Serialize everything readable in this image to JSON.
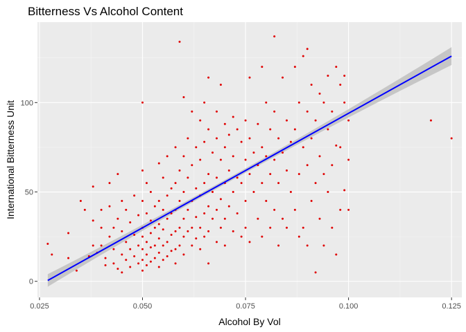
{
  "chart_data": {
    "type": "scatter",
    "title": "Bitterness Vs Alcohol Content",
    "xlabel": "Alcohol By Vol",
    "ylabel": "International Bitterness Unit",
    "xlim": [
      0.0245,
      0.1275
    ],
    "ylim": [
      -9,
      145
    ],
    "x_ticks": [
      0.025,
      0.05,
      0.075,
      0.1,
      0.125
    ],
    "x_tick_labels": [
      "0.025",
      "0.050",
      "0.075",
      "0.100",
      "0.125"
    ],
    "y_ticks": [
      0,
      50,
      100
    ],
    "y_tick_labels": [
      "0",
      "50",
      "100"
    ],
    "grid": true,
    "legend": "none",
    "point_color": "#e00000",
    "fit_color": "#0000ff",
    "ribbon_color": "#bdbdbd",
    "panel_color": "#ebebeb",
    "fit_line": {
      "x": [
        0.027,
        0.125
      ],
      "y": [
        0.5,
        126
      ],
      "ci_halfwidth_start": 3.5,
      "ci_halfwidth_mid": 1.2,
      "ci_halfwidth_end": 5
    },
    "points": [
      [
        0.027,
        21
      ],
      [
        0.028,
        15
      ],
      [
        0.032,
        27
      ],
      [
        0.032,
        13
      ],
      [
        0.034,
        6
      ],
      [
        0.035,
        45
      ],
      [
        0.036,
        40
      ],
      [
        0.037,
        14
      ],
      [
        0.038,
        53
      ],
      [
        0.038,
        34
      ],
      [
        0.038,
        20
      ],
      [
        0.039,
        16
      ],
      [
        0.04,
        40
      ],
      [
        0.04,
        30
      ],
      [
        0.04,
        20
      ],
      [
        0.041,
        9
      ],
      [
        0.041,
        13
      ],
      [
        0.042,
        55
      ],
      [
        0.042,
        42
      ],
      [
        0.042,
        25
      ],
      [
        0.043,
        30
      ],
      [
        0.043,
        18
      ],
      [
        0.043,
        10
      ],
      [
        0.044,
        7
      ],
      [
        0.044,
        60
      ],
      [
        0.044,
        35
      ],
      [
        0.045,
        45
      ],
      [
        0.045,
        28
      ],
      [
        0.045,
        15
      ],
      [
        0.045,
        5
      ],
      [
        0.046,
        40
      ],
      [
        0.046,
        22
      ],
      [
        0.046,
        12
      ],
      [
        0.047,
        33
      ],
      [
        0.047,
        18
      ],
      [
        0.047,
        8
      ],
      [
        0.048,
        48
      ],
      [
        0.048,
        26
      ],
      [
        0.048,
        14
      ],
      [
        0.049,
        37
      ],
      [
        0.049,
        20
      ],
      [
        0.049,
        10
      ],
      [
        0.05,
        100
      ],
      [
        0.05,
        62
      ],
      [
        0.05,
        45
      ],
      [
        0.05,
        30
      ],
      [
        0.05,
        25
      ],
      [
        0.05,
        18
      ],
      [
        0.05,
        12
      ],
      [
        0.05,
        6
      ],
      [
        0.051,
        55
      ],
      [
        0.051,
        38
      ],
      [
        0.051,
        22
      ],
      [
        0.051,
        15
      ],
      [
        0.051,
        9
      ],
      [
        0.052,
        50
      ],
      [
        0.052,
        34
      ],
      [
        0.052,
        27
      ],
      [
        0.052,
        19
      ],
      [
        0.052,
        11
      ],
      [
        0.053,
        42
      ],
      [
        0.053,
        30
      ],
      [
        0.053,
        20
      ],
      [
        0.053,
        13
      ],
      [
        0.054,
        66
      ],
      [
        0.054,
        45
      ],
      [
        0.054,
        32
      ],
      [
        0.054,
        24
      ],
      [
        0.054,
        16
      ],
      [
        0.054,
        8
      ],
      [
        0.055,
        58
      ],
      [
        0.055,
        40
      ],
      [
        0.055,
        29
      ],
      [
        0.055,
        20
      ],
      [
        0.055,
        12
      ],
      [
        0.056,
        70
      ],
      [
        0.056,
        48
      ],
      [
        0.056,
        35
      ],
      [
        0.056,
        22
      ],
      [
        0.056,
        14
      ],
      [
        0.057,
        52
      ],
      [
        0.057,
        38
      ],
      [
        0.057,
        26
      ],
      [
        0.057,
        17
      ],
      [
        0.058,
        75
      ],
      [
        0.058,
        55
      ],
      [
        0.058,
        40
      ],
      [
        0.058,
        28
      ],
      [
        0.058,
        18
      ],
      [
        0.058,
        10
      ],
      [
        0.059,
        134
      ],
      [
        0.059,
        62
      ],
      [
        0.059,
        45
      ],
      [
        0.059,
        30
      ],
      [
        0.059,
        20
      ],
      [
        0.06,
        103
      ],
      [
        0.06,
        70
      ],
      [
        0.06,
        50
      ],
      [
        0.06,
        35
      ],
      [
        0.06,
        25
      ],
      [
        0.06,
        15
      ],
      [
        0.061,
        80
      ],
      [
        0.061,
        58
      ],
      [
        0.061,
        40
      ],
      [
        0.061,
        28
      ],
      [
        0.062,
        95
      ],
      [
        0.062,
        65
      ],
      [
        0.062,
        45
      ],
      [
        0.062,
        30
      ],
      [
        0.062,
        20
      ],
      [
        0.063,
        75
      ],
      [
        0.063,
        52
      ],
      [
        0.063,
        36
      ],
      [
        0.063,
        24
      ],
      [
        0.064,
        90
      ],
      [
        0.064,
        68
      ],
      [
        0.064,
        48
      ],
      [
        0.064,
        30
      ],
      [
        0.064,
        18
      ],
      [
        0.065,
        100
      ],
      [
        0.065,
        78
      ],
      [
        0.065,
        55
      ],
      [
        0.065,
        38
      ],
      [
        0.065,
        25
      ],
      [
        0.066,
        114
      ],
      [
        0.066,
        85
      ],
      [
        0.066,
        60
      ],
      [
        0.066,
        42
      ],
      [
        0.066,
        28
      ],
      [
        0.066,
        10
      ],
      [
        0.067,
        72
      ],
      [
        0.067,
        50
      ],
      [
        0.067,
        35
      ],
      [
        0.068,
        95
      ],
      [
        0.068,
        80
      ],
      [
        0.068,
        58
      ],
      [
        0.068,
        40
      ],
      [
        0.068,
        22
      ],
      [
        0.069,
        110
      ],
      [
        0.069,
        68
      ],
      [
        0.069,
        46
      ],
      [
        0.069,
        30
      ],
      [
        0.07,
        88
      ],
      [
        0.07,
        75
      ],
      [
        0.07,
        55
      ],
      [
        0.07,
        35
      ],
      [
        0.07,
        20
      ],
      [
        0.071,
        82
      ],
      [
        0.071,
        62
      ],
      [
        0.071,
        42
      ],
      [
        0.072,
        92
      ],
      [
        0.072,
        70
      ],
      [
        0.072,
        50
      ],
      [
        0.072,
        28
      ],
      [
        0.073,
        85
      ],
      [
        0.073,
        58
      ],
      [
        0.073,
        38
      ],
      [
        0.074,
        78
      ],
      [
        0.074,
        55
      ],
      [
        0.074,
        25
      ],
      [
        0.075,
        90
      ],
      [
        0.075,
        68
      ],
      [
        0.075,
        45
      ],
      [
        0.075,
        30
      ],
      [
        0.076,
        114
      ],
      [
        0.076,
        80
      ],
      [
        0.076,
        60
      ],
      [
        0.076,
        22
      ],
      [
        0.077,
        72
      ],
      [
        0.077,
        50
      ],
      [
        0.078,
        88
      ],
      [
        0.078,
        65
      ],
      [
        0.078,
        35
      ],
      [
        0.079,
        120
      ],
      [
        0.079,
        75
      ],
      [
        0.079,
        55
      ],
      [
        0.079,
        25
      ],
      [
        0.08,
        100
      ],
      [
        0.08,
        70
      ],
      [
        0.08,
        45
      ],
      [
        0.081,
        85
      ],
      [
        0.081,
        60
      ],
      [
        0.081,
        30
      ],
      [
        0.082,
        137
      ],
      [
        0.082,
        95
      ],
      [
        0.082,
        68
      ],
      [
        0.082,
        40
      ],
      [
        0.083,
        80
      ],
      [
        0.083,
        55
      ],
      [
        0.083,
        20
      ],
      [
        0.084,
        114
      ],
      [
        0.084,
        72
      ],
      [
        0.084,
        35
      ],
      [
        0.085,
        90
      ],
      [
        0.085,
        62
      ],
      [
        0.085,
        30
      ],
      [
        0.086,
        78
      ],
      [
        0.086,
        50
      ],
      [
        0.087,
        120
      ],
      [
        0.087,
        85
      ],
      [
        0.087,
        40
      ],
      [
        0.088,
        100
      ],
      [
        0.088,
        60
      ],
      [
        0.088,
        25
      ],
      [
        0.089,
        126
      ],
      [
        0.089,
        75
      ],
      [
        0.089,
        30
      ],
      [
        0.09,
        130
      ],
      [
        0.09,
        95
      ],
      [
        0.09,
        65
      ],
      [
        0.09,
        20
      ],
      [
        0.091,
        110
      ],
      [
        0.091,
        80
      ],
      [
        0.091,
        45
      ],
      [
        0.092,
        90
      ],
      [
        0.092,
        55
      ],
      [
        0.092,
        5
      ],
      [
        0.093,
        105
      ],
      [
        0.093,
        70
      ],
      [
        0.093,
        35
      ],
      [
        0.094,
        100
      ],
      [
        0.094,
        60
      ],
      [
        0.094,
        20
      ],
      [
        0.095,
        115
      ],
      [
        0.095,
        85
      ],
      [
        0.095,
        50
      ],
      [
        0.096,
        95
      ],
      [
        0.096,
        65
      ],
      [
        0.096,
        30
      ],
      [
        0.097,
        120
      ],
      [
        0.097,
        76
      ],
      [
        0.097,
        15
      ],
      [
        0.098,
        110
      ],
      [
        0.098,
        75
      ],
      [
        0.098,
        40
      ],
      [
        0.099,
        115
      ],
      [
        0.099,
        100
      ],
      [
        0.099,
        51
      ],
      [
        0.1,
        90
      ],
      [
        0.1,
        68
      ],
      [
        0.1,
        40
      ],
      [
        0.12,
        90
      ],
      [
        0.125,
        80
      ]
    ]
  }
}
